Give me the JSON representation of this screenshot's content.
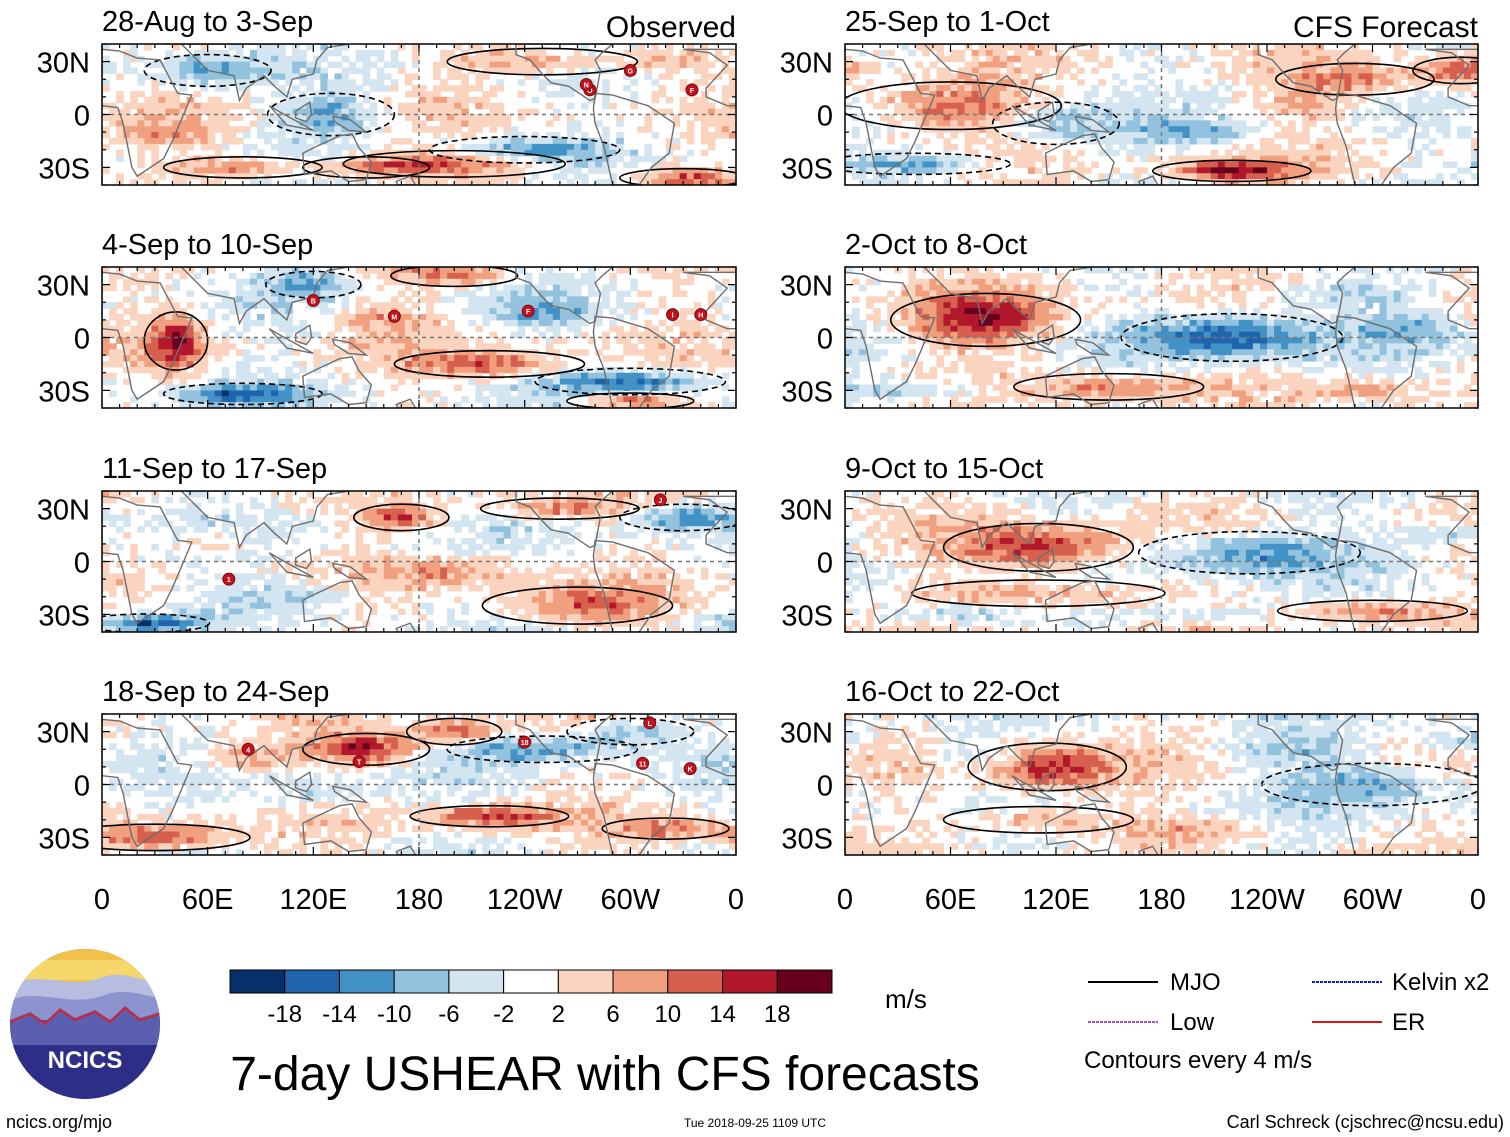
{
  "header": {
    "observed_label": "Observed",
    "forecast_label": "CFS Forecast"
  },
  "panels_observed": [
    {
      "title": "28-Aug to 3-Sep",
      "storms": [
        "G",
        "F",
        "O",
        "N"
      ]
    },
    {
      "title": "4-Sep to 10-Sep",
      "storms": [
        "B",
        "M",
        "F",
        "I",
        "H"
      ]
    },
    {
      "title": "11-Sep to 17-Sep",
      "storms": [
        "1",
        "J"
      ]
    },
    {
      "title": "18-Sep to 24-Sep",
      "storms": [
        "4",
        "T",
        "18",
        "L",
        "11",
        "K"
      ]
    }
  ],
  "panels_forecast": [
    {
      "title": "25-Sep to 1-Oct"
    },
    {
      "title": "2-Oct to 8-Oct"
    },
    {
      "title": "9-Oct to 15-Oct"
    },
    {
      "title": "16-Oct to 22-Oct"
    }
  ],
  "axes": {
    "lat_labels": [
      "30N",
      "0",
      "30S"
    ],
    "lon_labels": [
      "0",
      "60E",
      "120E",
      "180",
      "120W",
      "60W",
      "0"
    ]
  },
  "colorbar": {
    "tick_labels": [
      "-18",
      "-14",
      "-10",
      "-6",
      "-2",
      "2",
      "6",
      "10",
      "14",
      "18"
    ],
    "colors": [
      "#08306b",
      "#1f64ad",
      "#4292c6",
      "#92c2de",
      "#d3e5f0",
      "#ffffff",
      "#fbd4bf",
      "#f0a07f",
      "#d6604d",
      "#b2182b",
      "#67001f"
    ],
    "units": "m/s"
  },
  "legend": {
    "items": [
      {
        "label": "MJO",
        "color": "#000000"
      },
      {
        "label": "Kelvin x2",
        "color": "#1a1adb"
      },
      {
        "label": "Low",
        "color": "#9a4fd6"
      },
      {
        "label": "ER",
        "color": "#e0141e"
      }
    ],
    "contour_note": "Contours every 4 m/s"
  },
  "logo": {
    "text": "NCICS"
  },
  "title": "7-day USHEAR with CFS forecasts",
  "footer": {
    "website": "ncics.org/mjo",
    "timestamp": "Tue 2018-09-25 1109 UTC",
    "credit": "Carl Schreck (cjschrec@ncsu.edu)"
  },
  "chart_data": {
    "type": "heatmap",
    "variable": "7-day USHEAR",
    "units": "m/s",
    "x_range": [
      0,
      360
    ],
    "x_ticks": [
      0,
      60,
      120,
      180,
      240,
      300,
      360
    ],
    "y_range": [
      -40,
      40
    ],
    "y_ticks": [
      30,
      0,
      -30
    ],
    "color_levels": [
      -18,
      -14,
      -10,
      -6,
      -2,
      2,
      6,
      10,
      14,
      18
    ],
    "contour_interval": 4,
    "panels": [
      "28-Aug to 3-Sep",
      "4-Sep to 10-Sep",
      "11-Sep to 17-Sep",
      "18-Sep to 24-Sep",
      "25-Sep to 1-Oct",
      "2-Oct to 8-Oct",
      "9-Oct to 15-Oct",
      "16-Oct to 22-Oct"
    ]
  }
}
